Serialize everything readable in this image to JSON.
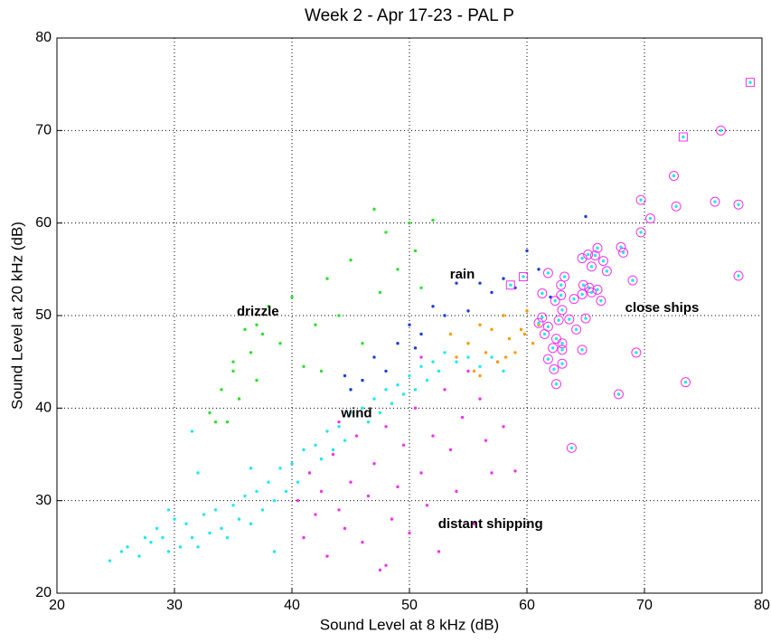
{
  "chart_data": {
    "type": "scatter",
    "title": "Week 2 - Apr 17-23 - PAL P",
    "xlabel": "Sound Level at 8 kHz (dB)",
    "ylabel": "Sound Level at 20 kHz (dB)",
    "xlim": [
      20,
      80
    ],
    "ylim": [
      20,
      80
    ],
    "xticks": [
      20,
      30,
      40,
      50,
      60,
      70,
      80
    ],
    "yticks": [
      20,
      30,
      40,
      50,
      60,
      70,
      80
    ],
    "grid": true,
    "series": [
      {
        "color": "#1ee8f0",
        "marker": "dot",
        "x": [
          24.5,
          25.5,
          26,
          27,
          27.5,
          28,
          28.5,
          29,
          29.5,
          30,
          30.5,
          31,
          31.5,
          32,
          32.5,
          33,
          33.5,
          34,
          34.5,
          35,
          35.5,
          36,
          36.5,
          37,
          37.5,
          38,
          38.5,
          39,
          39.5,
          40,
          40.5,
          41,
          41.5,
          42,
          42.5,
          43,
          43.5,
          44,
          44.5,
          45,
          45.5,
          46,
          46.5,
          47,
          47.5,
          48,
          48.5,
          49,
          49.5,
          50,
          50.5,
          51,
          51.5,
          52,
          52.5,
          53,
          54,
          55,
          56,
          57,
          58,
          36.5,
          32,
          29.5,
          38.5,
          31.5
        ],
        "y": [
          23.5,
          24.5,
          25,
          24,
          26,
          25.5,
          27,
          26,
          24.5,
          28,
          25,
          27.5,
          26,
          25,
          28.5,
          26.5,
          29,
          27,
          26,
          29.5,
          28,
          30.5,
          27.5,
          31,
          29,
          32,
          30,
          33.5,
          31,
          34,
          32,
          35.5,
          33,
          36,
          34.5,
          37.5,
          35.5,
          38,
          36.5,
          39.5,
          37,
          40,
          38.5,
          41,
          39.5,
          42,
          40.5,
          42.5,
          41.5,
          43.5,
          42,
          44.5,
          43,
          45,
          44,
          46,
          45,
          45.5,
          44.5,
          45.5,
          44,
          33.5,
          33,
          29,
          24.5,
          37.5
        ]
      },
      {
        "color": "#f033f0",
        "marker": "dot",
        "x": [
          40.5,
          41,
          41.5,
          42,
          42.5,
          43,
          43.5,
          44,
          44.5,
          45,
          45.5,
          46,
          46.5,
          47,
          47.5,
          48,
          48.5,
          49,
          49.5,
          50,
          50.5,
          51,
          51.5,
          52,
          52.5,
          53,
          53.5,
          54,
          54.5,
          55,
          55.5,
          56,
          56.5,
          57,
          57.5,
          58,
          59,
          48,
          44,
          51
        ],
        "y": [
          30,
          26,
          33,
          28.5,
          31,
          24,
          35,
          29,
          27,
          32,
          37,
          25.5,
          30.5,
          34,
          22.5,
          38,
          28,
          31.5,
          36,
          26.5,
          40,
          33,
          29.5,
          37,
          24.5,
          42,
          35.5,
          31,
          39,
          44,
          27.5,
          41,
          36.5,
          33,
          45,
          38,
          33.2,
          23,
          38.5,
          45.5
        ]
      },
      {
        "color": "#2ee02e",
        "marker": "dot",
        "x": [
          33,
          33.5,
          34,
          34.5,
          35,
          35.5,
          36,
          36.5,
          37,
          37.5,
          38,
          39,
          40,
          41,
          42,
          43,
          44,
          45,
          46,
          47,
          47.5,
          48,
          49,
          50,
          50.5,
          51,
          52,
          37,
          35,
          42.5
        ],
        "y": [
          39.5,
          38.5,
          42,
          38.5,
          44,
          41,
          48.5,
          46,
          43,
          48,
          51,
          47,
          52,
          44.5,
          49,
          54,
          50,
          56,
          47,
          61.5,
          52.5,
          59,
          55,
          60,
          57,
          53,
          60.3,
          49,
          45,
          44
        ]
      },
      {
        "color": "#1a3fd9",
        "marker": "dot",
        "x": [
          44.5,
          45,
          46,
          47,
          48,
          49,
          50,
          50.5,
          51,
          52,
          53,
          54,
          55,
          56,
          57,
          58,
          59,
          60,
          61,
          62,
          65
        ],
        "y": [
          43.5,
          42,
          43,
          45.5,
          44,
          47,
          49,
          46.5,
          48,
          51,
          50,
          53.5,
          50.5,
          53.5,
          52.5,
          54,
          53,
          57,
          55,
          52,
          60.7
        ]
      },
      {
        "color": "#ff9900",
        "marker": "dot",
        "x": [
          53.5,
          54,
          55,
          55.5,
          56,
          56.5,
          57,
          57.5,
          58,
          58.5,
          59,
          59.5,
          60,
          60.5,
          61,
          56,
          58.2,
          59.8
        ],
        "y": [
          48,
          45.5,
          47,
          44,
          49,
          46,
          48.5,
          45,
          50,
          47.5,
          46,
          48.5,
          50.5,
          47,
          49,
          43.5,
          45.5,
          48
        ]
      },
      {
        "color": "#1ee8f0",
        "edge_color": "#f033f0",
        "marker": "circle",
        "x": [
          76.5,
          72.5,
          72.7,
          76,
          78,
          69.7,
          70.5,
          69.7,
          68,
          68.2,
          66,
          65.8,
          65.2,
          64.7,
          66.5,
          66.8,
          65.5,
          69,
          64.8,
          65.3,
          65.5,
          66,
          64.7,
          63.2,
          62.9,
          62.9,
          61.8,
          61.3,
          62.4,
          63,
          64,
          66.3,
          65,
          64.2,
          63.6,
          62.7,
          61.3,
          61,
          61.8,
          61.5,
          62.5,
          63,
          62.2,
          63,
          64.7,
          61.8,
          63,
          62.3,
          62.5,
          67.8,
          69.3,
          73.5,
          78,
          63.8
        ],
        "y": [
          70,
          65.1,
          61.8,
          62.3,
          62,
          62.5,
          60.5,
          59,
          57.4,
          56.8,
          57.3,
          56.5,
          56.6,
          56.2,
          55.9,
          54.8,
          55.3,
          53.8,
          53.3,
          53,
          52.5,
          52.8,
          52.3,
          54.2,
          53.3,
          52.2,
          54.6,
          52.4,
          51.6,
          50.6,
          51.8,
          51.6,
          49.7,
          48.5,
          49.6,
          49.5,
          49.8,
          49.2,
          48.8,
          48,
          47.5,
          47,
          46.5,
          46.3,
          46.3,
          45.3,
          44.8,
          44.2,
          42.6,
          41.5,
          46,
          42.8,
          54.3,
          35.7
        ]
      },
      {
        "color": "#1ee8f0",
        "edge_color": "#f033f0",
        "marker": "square",
        "x": [
          79,
          73.3,
          59.7,
          58.6
        ],
        "y": [
          75.2,
          69.3,
          54.2,
          53.3
        ]
      }
    ],
    "annotations": [
      {
        "text": "drizzle",
        "x": 37.1,
        "y": 50.4
      },
      {
        "text": "rain",
        "x": 54.5,
        "y": 54.4
      },
      {
        "text": "wind",
        "x": 45.5,
        "y": 39.4
      },
      {
        "text": "distant shipping",
        "x": 56.9,
        "y": 27.4
      },
      {
        "text": "close ships",
        "x": 71.5,
        "y": 50.8
      }
    ]
  }
}
